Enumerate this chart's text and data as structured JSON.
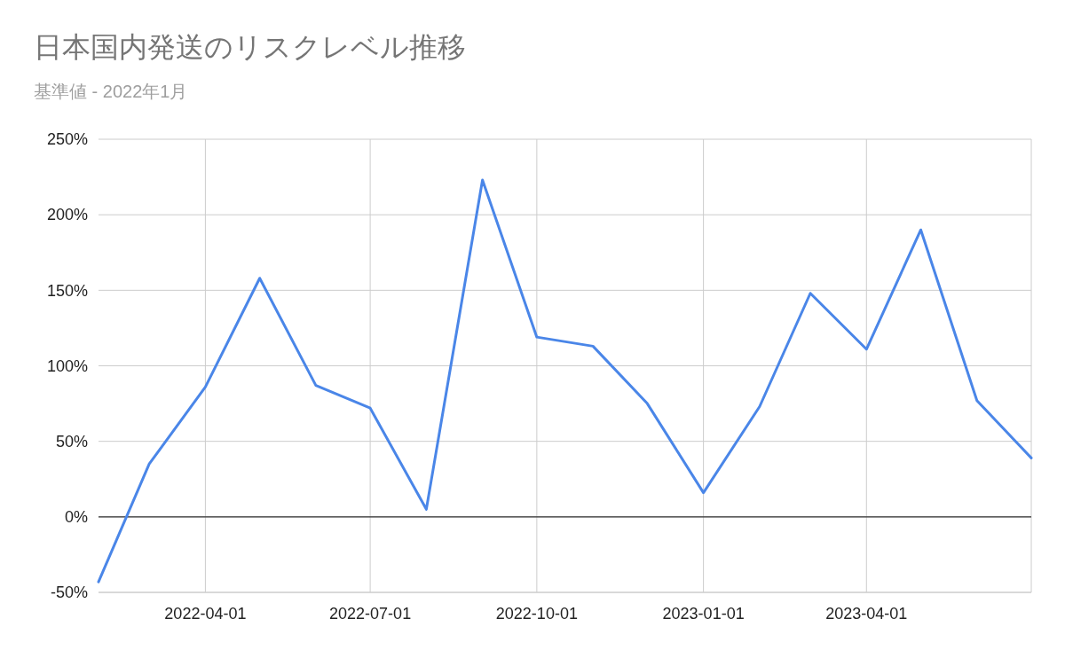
{
  "chart_data": {
    "type": "line",
    "title": "日本国内発送のリスクレベル推移",
    "subtitle": "基準値 - 2022年1月",
    "x": [
      "2022-02-01",
      "2022-03-01",
      "2022-04-01",
      "2022-05-01",
      "2022-06-01",
      "2022-07-01",
      "2022-08-01",
      "2022-09-01",
      "2022-10-01",
      "2022-11-01",
      "2022-12-01",
      "2023-01-01",
      "2023-02-01",
      "2023-03-01",
      "2023-04-01",
      "2023-05-01",
      "2023-06-01",
      "2023-07-01"
    ],
    "series": [
      {
        "color": "#4a86e8",
        "values": [
          -43,
          35,
          86,
          158,
          87,
          72,
          5,
          223,
          119,
          113,
          75,
          16,
          73,
          148,
          111,
          190,
          77,
          39
        ]
      }
    ],
    "xlim": [
      "2022-02-01",
      "2023-07-01"
    ],
    "xticks": [
      "2022-04-01",
      "2022-07-01",
      "2022-10-01",
      "2023-01-01",
      "2023-04-01"
    ],
    "ylim": [
      -50,
      250
    ],
    "yticks": [
      {
        "value": -50,
        "label": "-50%"
      },
      {
        "value": 0,
        "label": "0%"
      },
      {
        "value": 50,
        "label": "50%"
      },
      {
        "value": 100,
        "label": "100%"
      },
      {
        "value": 150,
        "label": "150%"
      },
      {
        "value": 200,
        "label": "200%"
      },
      {
        "value": 250,
        "label": "250%"
      }
    ],
    "ref_lines": [
      {
        "axis": "y",
        "value": 0,
        "color": "#333333"
      }
    ],
    "grid": true,
    "marker": "none",
    "line_style": "solid"
  }
}
